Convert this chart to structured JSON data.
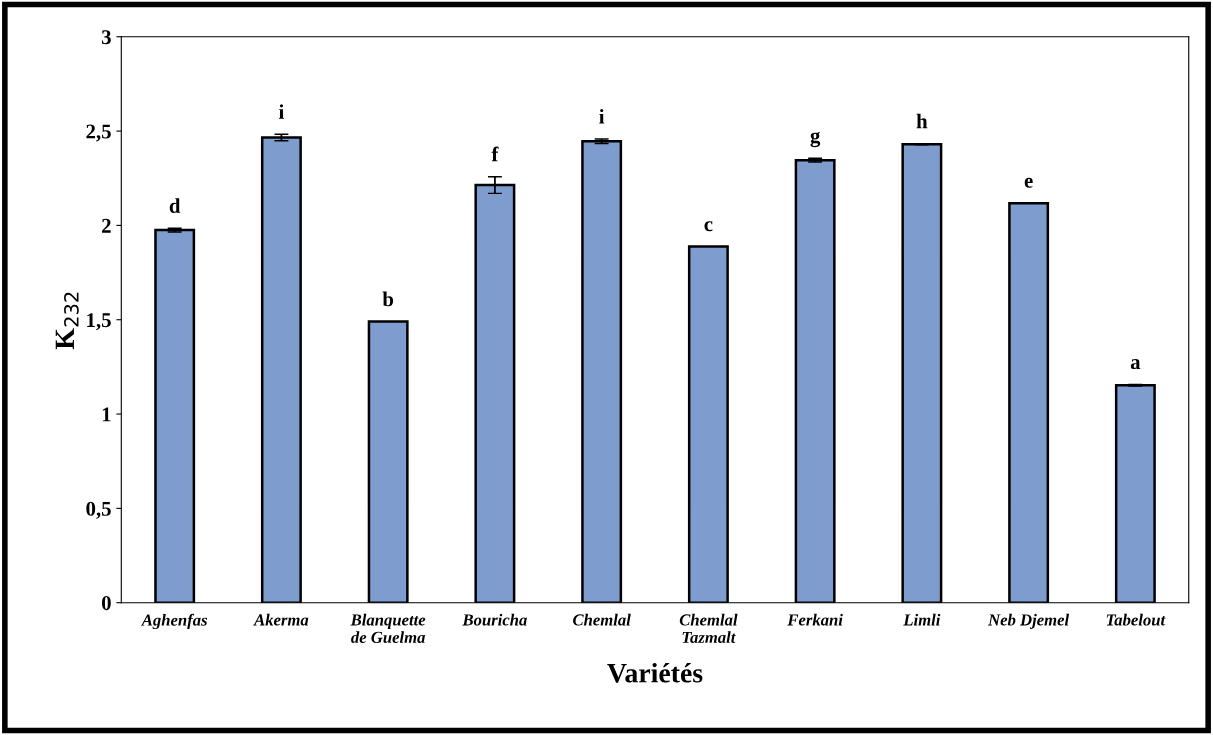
{
  "chart_data": {
    "type": "bar",
    "xlabel": "Variétés",
    "ylabel": "K$_{232}$",
    "categories": [
      "Aghenfas",
      "Akerma",
      "Blanquette\nde Guelma",
      "Bouricha",
      "Chemlal",
      "Chemlal\nTazmalt",
      "Ferkani",
      "Limli",
      "Neb Djemel",
      "Tabelout"
    ],
    "values": [
      1.975,
      2.466,
      1.49,
      2.214,
      2.446,
      1.888,
      2.346,
      2.43,
      2.118,
      1.153
    ],
    "errors": [
      0.01,
      0.017,
      null,
      0.044,
      0.012,
      null,
      0.01,
      0.003,
      null,
      0.004
    ],
    "value_labels": [
      "d",
      "i",
      "b",
      "f",
      "i",
      "c",
      "g",
      "h",
      "e",
      "a"
    ],
    "color": "#7f9ccf",
    "ylim": [
      0,
      3
    ],
    "yticks": [
      0,
      {
        "value": 0.5,
        "label": "0,5"
      },
      1,
      {
        "value": 1.5,
        "label": "1,5"
      },
      2,
      {
        "value": 2.5,
        "label": "2,5"
      },
      3
    ],
    "grid": false,
    "legend": false
  }
}
